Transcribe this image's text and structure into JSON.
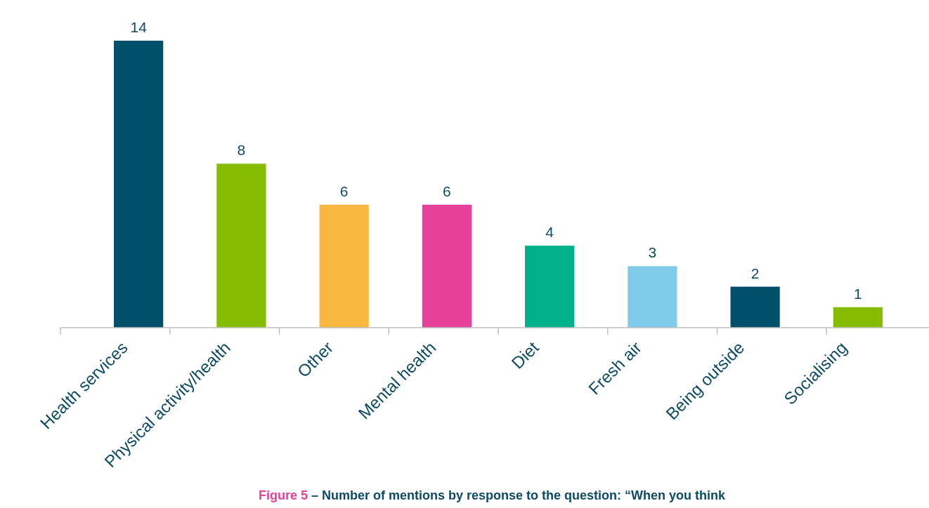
{
  "chart_data": {
    "type": "bar",
    "title": "Figure 5",
    "subtitle": "– Number of mentions by response to the question: “When you think",
    "categories": [
      "Health services",
      "Physical activity/health",
      "Other",
      "Mental health",
      "Diet",
      "Fresh air",
      "Being outside",
      "Socialising"
    ],
    "values": [
      14,
      8,
      6,
      6,
      4,
      3,
      2,
      1
    ],
    "colors": [
      "#004f6b",
      "#86bc00",
      "#f8b83f",
      "#e6409a",
      "#00b18b",
      "#80cbe9",
      "#004f6b",
      "#86bc00"
    ],
    "data_labels": true
  }
}
